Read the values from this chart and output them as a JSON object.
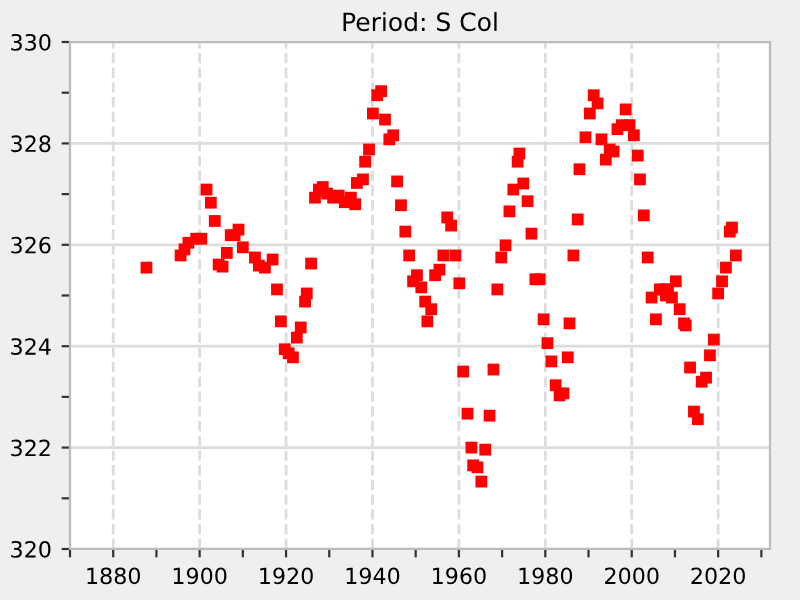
{
  "chart_data": {
    "type": "scatter",
    "title": "Period: S Col",
    "marker": "square",
    "grid": true,
    "xlim": [
      1870,
      2032
    ],
    "ylim": [
      320,
      330
    ],
    "xticks": [
      {
        "value": 1870,
        "label": null
      },
      1880,
      {
        "value": 1890,
        "label": null
      },
      1900,
      {
        "value": 1910,
        "label": null
      },
      1920,
      {
        "value": 1930,
        "label": null
      },
      1940,
      {
        "value": 1950,
        "label": null
      },
      1960,
      {
        "value": 1970,
        "label": null
      },
      1980,
      {
        "value": 1990,
        "label": null
      },
      2000,
      {
        "value": 2010,
        "label": null
      },
      2020,
      {
        "value": 2030,
        "label": null
      }
    ],
    "yticks": [
      320,
      {
        "value": 321,
        "label": null
      },
      322,
      {
        "value": 323,
        "label": null
      },
      324,
      {
        "value": 325,
        "label": null
      },
      326,
      {
        "value": 327,
        "label": null
      },
      328,
      {
        "value": 329,
        "label": null
      },
      330
    ],
    "series": [
      {
        "color": "#ff0000",
        "x": [
          1887.7,
          1895.6,
          1896.5,
          1897.4,
          1899.2,
          1900.4,
          1901.6,
          1902.6,
          1903.5,
          1904.4,
          1905.3,
          1906.3,
          1907.2,
          1908.1,
          1909.0,
          1910.0,
          1912.8,
          1913.7,
          1915.1,
          1916.9,
          1917.9,
          1918.8,
          1919.7,
          1920.6,
          1921.6,
          1922.5,
          1923.4,
          1924.4,
          1924.8,
          1925.8,
          1926.7,
          1927.6,
          1928.5,
          1929.5,
          1930.9,
          1932.2,
          1933.6,
          1935.0,
          1936.0,
          1936.4,
          1937.8,
          1938.3,
          1939.2,
          1940.1,
          1941.1,
          1942.0,
          1942.9,
          1943.9,
          1944.8,
          1945.7,
          1946.6,
          1947.6,
          1948.5,
          1949.4,
          1950.3,
          1951.3,
          1952.2,
          1952.7,
          1953.6,
          1954.5,
          1955.5,
          1956.4,
          1957.3,
          1958.2,
          1959.2,
          1960.1,
          1961.0,
          1962.0,
          1962.9,
          1963.3,
          1964.3,
          1965.2,
          1966.1,
          1967.1,
          1968.0,
          1968.9,
          1969.8,
          1970.8,
          1971.7,
          1972.6,
          1973.6,
          1974.0,
          1974.9,
          1975.9,
          1976.8,
          1977.7,
          1978.7,
          1979.6,
          1980.5,
          1981.4,
          1982.4,
          1983.3,
          1984.2,
          1985.2,
          1985.6,
          1986.5,
          1987.5,
          1987.9,
          1989.3,
          1990.3,
          1991.2,
          1992.1,
          1993.0,
          1994.0,
          1994.9,
          1995.8,
          1996.7,
          1997.7,
          1998.6,
          1999.5,
          2000.5,
          2001.4,
          2001.9,
          2002.8,
          2003.7,
          2004.6,
          2005.6,
          2006.5,
          2007.4,
          2007.9,
          2008.4,
          2009.3,
          2010.2,
          2011.1,
          2012.1,
          2012.5,
          2013.5,
          2014.4,
          2015.3,
          2016.2,
          2017.2,
          2018.1,
          2019.0,
          2020.0,
          2020.9,
          2021.8,
          2022.7,
          2023.2,
          2024.1
        ],
        "values": [
          325.55,
          325.79,
          325.91,
          326.04,
          326.12,
          326.12,
          327.09,
          326.83,
          326.47,
          325.61,
          325.57,
          325.84,
          326.19,
          326.19,
          326.3,
          325.95,
          325.75,
          325.59,
          325.55,
          325.71,
          325.12,
          324.49,
          323.94,
          323.86,
          323.78,
          324.17,
          324.37,
          324.88,
          325.04,
          325.63,
          326.93,
          327.09,
          327.14,
          327.01,
          326.93,
          326.97,
          326.84,
          326.93,
          326.8,
          327.22,
          327.29,
          327.64,
          327.88,
          328.59,
          328.95,
          329.03,
          328.47,
          328.08,
          328.16,
          327.25,
          326.78,
          326.26,
          325.79,
          325.28,
          325.4,
          325.16,
          324.88,
          324.49,
          324.73,
          325.4,
          325.51,
          325.79,
          326.54,
          326.38,
          325.79,
          325.24,
          323.5,
          322.67,
          322.0,
          321.65,
          321.61,
          321.33,
          321.96,
          322.63,
          323.54,
          325.12,
          325.75,
          325.99,
          326.66,
          327.09,
          327.64,
          327.8,
          327.21,
          326.86,
          326.22,
          325.32,
          325.32,
          324.53,
          324.06,
          323.7,
          323.23,
          323.03,
          323.07,
          323.78,
          324.45,
          325.79,
          326.5,
          327.49,
          328.12,
          328.59,
          328.95,
          328.79,
          328.08,
          327.68,
          327.88,
          327.84,
          328.28,
          328.36,
          328.67,
          328.36,
          328.16,
          327.76,
          327.29,
          326.58,
          325.75,
          324.96,
          324.53,
          325.12,
          325.12,
          325.0,
          325.12,
          324.96,
          325.28,
          324.73,
          324.45,
          324.41,
          323.58,
          322.71,
          322.56,
          323.3,
          323.38,
          323.82,
          324.13,
          325.04,
          325.28,
          325.55,
          326.26,
          326.34,
          325.79
        ]
      }
    ]
  }
}
